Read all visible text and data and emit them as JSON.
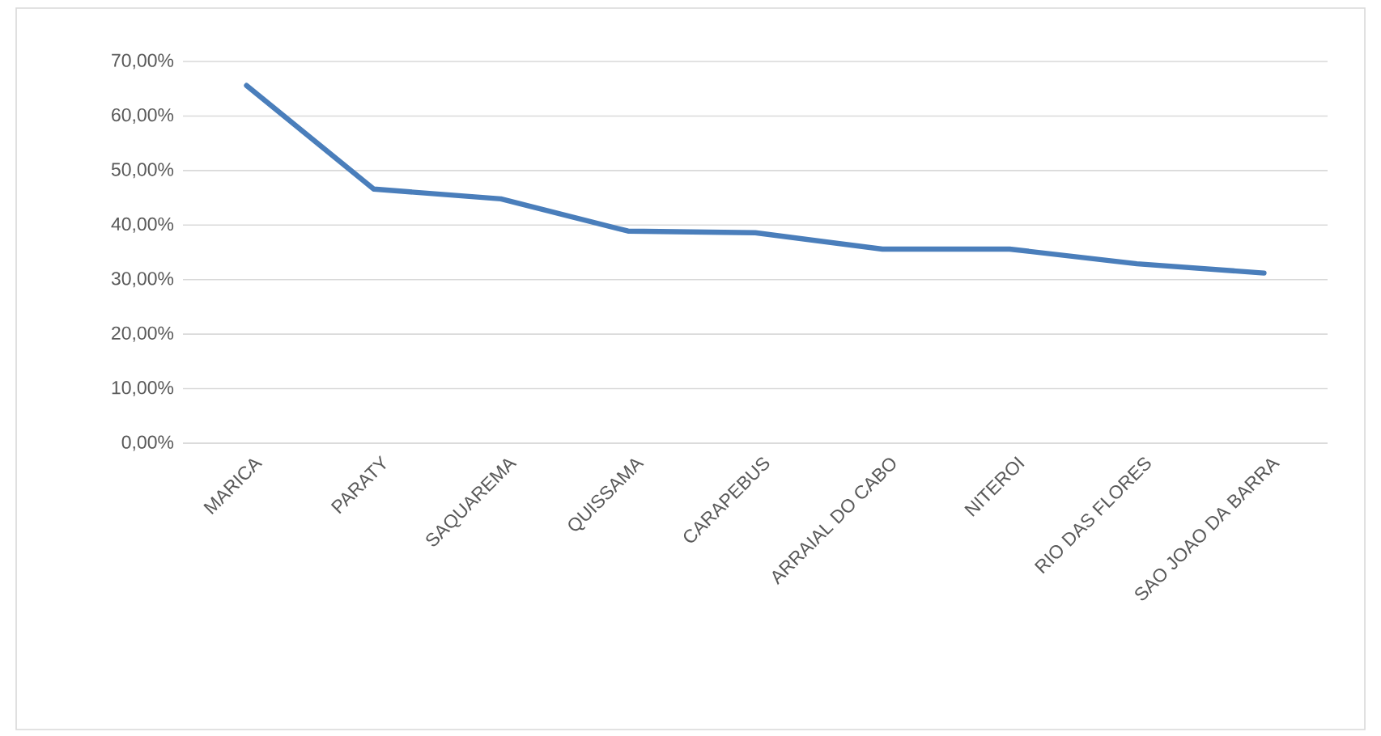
{
  "chart_data": {
    "type": "line",
    "categories": [
      "MARICA",
      "PARATY",
      "SAQUAREMA",
      "QUISSAMA",
      "CARAPEBUS",
      "ARRAIAL DO CABO",
      "NITEROI",
      "RIO DAS FLORES",
      "SAO JOAO DA BARRA"
    ],
    "series": [
      {
        "color": "#4a7ebb",
        "values": [
          65.6,
          46.6,
          44.8,
          38.9,
          38.6,
          35.6,
          35.6,
          32.9,
          31.2
        ]
      }
    ],
    "ylim": [
      0,
      70
    ],
    "yticks": [
      {
        "value": 0,
        "label": "0,00%"
      },
      {
        "value": 10,
        "label": "10,00%"
      },
      {
        "value": 20,
        "label": "20,00%"
      },
      {
        "value": 30,
        "label": "30,00%"
      },
      {
        "value": 40,
        "label": "40,00%"
      },
      {
        "value": 50,
        "label": "50,00%"
      },
      {
        "value": 60,
        "label": "60,00%"
      },
      {
        "value": 70,
        "label": "70,00%"
      }
    ],
    "grid": "y"
  }
}
